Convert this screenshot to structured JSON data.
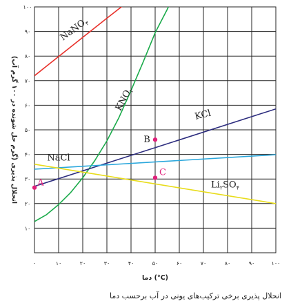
{
  "chart_data": {
    "type": "line",
    "title": "",
    "xlabel": "دما (°C)",
    "ylabel": "انحلال پذیری (گرم حل شونده در ۱۰۰ گرم آب)",
    "xlim": [
      0,
      100
    ],
    "ylim": [
      0,
      100
    ],
    "x_ticks": [
      0,
      10,
      20,
      30,
      40,
      50,
      60,
      70,
      80,
      90,
      100
    ],
    "x_tick_labels": [
      "۰",
      "۱۰",
      "۲۰",
      "۳۰",
      "۴۰",
      "۵۰",
      "۶۰",
      "۷۰",
      "۸۰",
      "۹۰",
      "۱۰۰"
    ],
    "y_ticks": [
      10,
      20,
      30,
      40,
      50,
      60,
      70,
      80,
      90,
      100
    ],
    "y_tick_labels": [
      "۱۰",
      "۲۰",
      "۳۰",
      "۴۰",
      "۵۰",
      "۶۰",
      "۷۰",
      "۸۰",
      "۹۰",
      "۱۰۰"
    ],
    "grid": true,
    "series": [
      {
        "name": "NaNO3",
        "label_main": "NaNO",
        "label_sub": "۳",
        "color": "#e8302a",
        "label_at": [
          17,
          90
        ],
        "label_rotate": -36,
        "x": [
          0,
          5,
          10,
          15,
          20,
          25,
          30,
          35,
          40
        ],
        "y": [
          72,
          75.9,
          79.8,
          83.7,
          87.6,
          91.5,
          95.4,
          99.2,
          103
        ]
      },
      {
        "name": "KNO3",
        "label_main": "KNO",
        "label_sub": "۳",
        "color": "#1aaa4a",
        "label_at": [
          38,
          62
        ],
        "label_rotate": -62,
        "x": [
          0,
          5,
          10,
          15,
          20,
          25,
          30,
          35,
          40,
          45,
          50,
          55,
          56
        ],
        "y": [
          12.7,
          15.5,
          19.6,
          24.5,
          30.5,
          37.5,
          45.5,
          55,
          66,
          77.5,
          89.5,
          99,
          101
        ]
      },
      {
        "name": "KCl",
        "label_main": "KCl",
        "label_sub": "",
        "color": "#2c2c7e",
        "label_at": [
          70,
          55
        ],
        "label_rotate": -14,
        "x": [
          0,
          100
        ],
        "y": [
          27,
          58.5
        ]
      },
      {
        "name": "NaCl",
        "label_main": "NaCl",
        "label_sub": "",
        "color": "#2aa7dc",
        "label_at": [
          10,
          37.5
        ],
        "label_rotate": 0,
        "x": [
          0,
          100
        ],
        "y": [
          34,
          39.9
        ]
      },
      {
        "name": "Li2SO4",
        "label_main": "Li",
        "label_sub": "۲",
        "label_tail": "SO",
        "label_tail_sub": "۴",
        "color": "#e8dc1a",
        "label_at": [
          79,
          26.5
        ],
        "label_rotate": 0,
        "x": [
          0,
          100
        ],
        "y": [
          36,
          20
        ]
      }
    ],
    "points": [
      {
        "label": "A",
        "x": 0,
        "y": 26.5,
        "color": "#e0207a"
      },
      {
        "label": "B",
        "x": 50,
        "y": 46,
        "color": "#e0207a"
      },
      {
        "label": "C",
        "x": 50,
        "y": 30.5,
        "color": "#e0207a"
      }
    ]
  },
  "caption": "انحلال پذیری برخی ترکیب‌های یونی در آب برحسب دما"
}
